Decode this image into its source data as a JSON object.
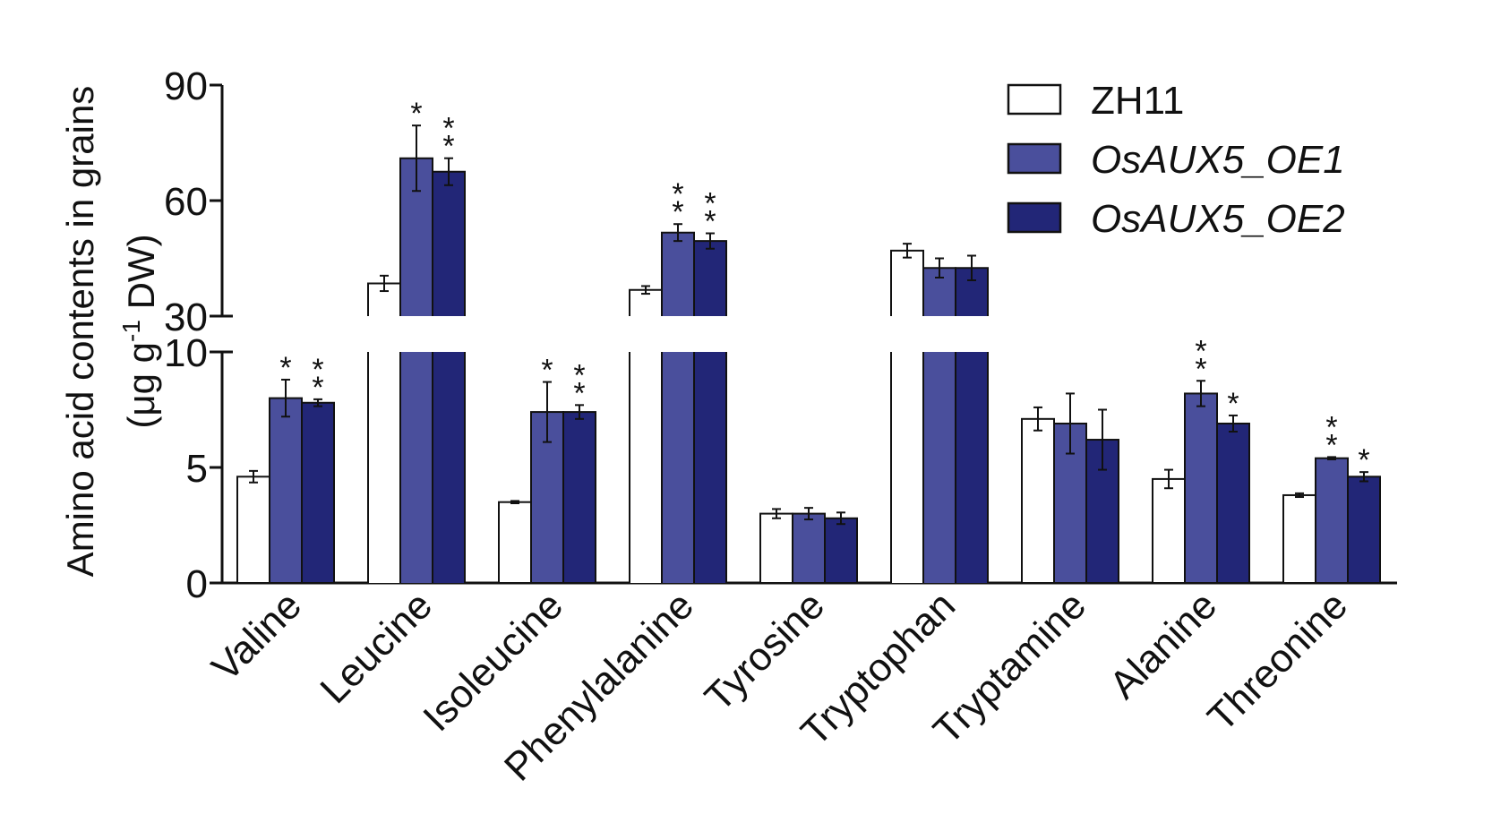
{
  "chart_data": {
    "type": "bar",
    "categories": [
      "Valine",
      "Leucine",
      "Isoleucine",
      "Phenylalanine",
      "Tyrosine",
      "Tryptophan",
      "Tryptamine",
      "Alanine",
      "Threonine"
    ],
    "series": [
      {
        "name": "ZH11",
        "values": [
          4.6,
          38.5,
          3.5,
          36.8,
          3.0,
          47.0,
          7.1,
          4.5,
          3.8
        ],
        "errors": [
          0.25,
          2.0,
          0.05,
          1.0,
          0.2,
          1.8,
          0.5,
          0.4,
          0.08
        ],
        "sig": [
          "",
          "",
          "",
          "",
          "",
          "",
          "",
          "",
          ""
        ]
      },
      {
        "name": "OsAUX5_OE1",
        "values": [
          8.0,
          71.0,
          7.4,
          51.7,
          3.0,
          42.5,
          6.9,
          8.2,
          5.4
        ],
        "errors": [
          0.8,
          8.5,
          1.3,
          2.2,
          0.25,
          2.5,
          1.3,
          0.55,
          0.05
        ],
        "sig": [
          "*",
          "*",
          "*",
          "**",
          "",
          "",
          "",
          "**",
          "**"
        ]
      },
      {
        "name": "OsAUX5_OE2",
        "values": [
          7.8,
          67.5,
          7.4,
          49.5,
          2.8,
          42.5,
          6.2,
          6.9,
          4.6
        ],
        "errors": [
          0.15,
          3.5,
          0.3,
          2.0,
          0.25,
          3.2,
          1.3,
          0.35,
          0.2
        ],
        "sig": [
          "**",
          "**",
          "**",
          "**",
          "",
          "",
          "",
          "*",
          "*"
        ]
      }
    ],
    "colors": [
      "#ffffff",
      "#4a4f9c",
      "#222677"
    ],
    "edge_color": "#111111",
    "ylabel_line1": "Amino acid contents in grains",
    "ylabel_line2": "(μg g",
    "ylabel_sup": "-1",
    "ylabel_line2_end": " DW)",
    "y_axis_lower": {
      "ylim": [
        0,
        10
      ],
      "ticks": [
        "0",
        "5",
        "10"
      ],
      "tick_values": [
        0,
        5,
        10
      ]
    },
    "y_axis_upper": {
      "ylim": [
        30,
        90
      ],
      "ticks": [
        "30",
        "60",
        "90"
      ],
      "tick_values": [
        30,
        60,
        90
      ]
    },
    "axis_break": true,
    "legend_position": "top-right",
    "legend_labels": [
      "ZH11",
      "OsAUX5_OE1",
      "OsAUX5_OE2"
    ],
    "legend_italic": [
      false,
      true,
      true
    ]
  }
}
